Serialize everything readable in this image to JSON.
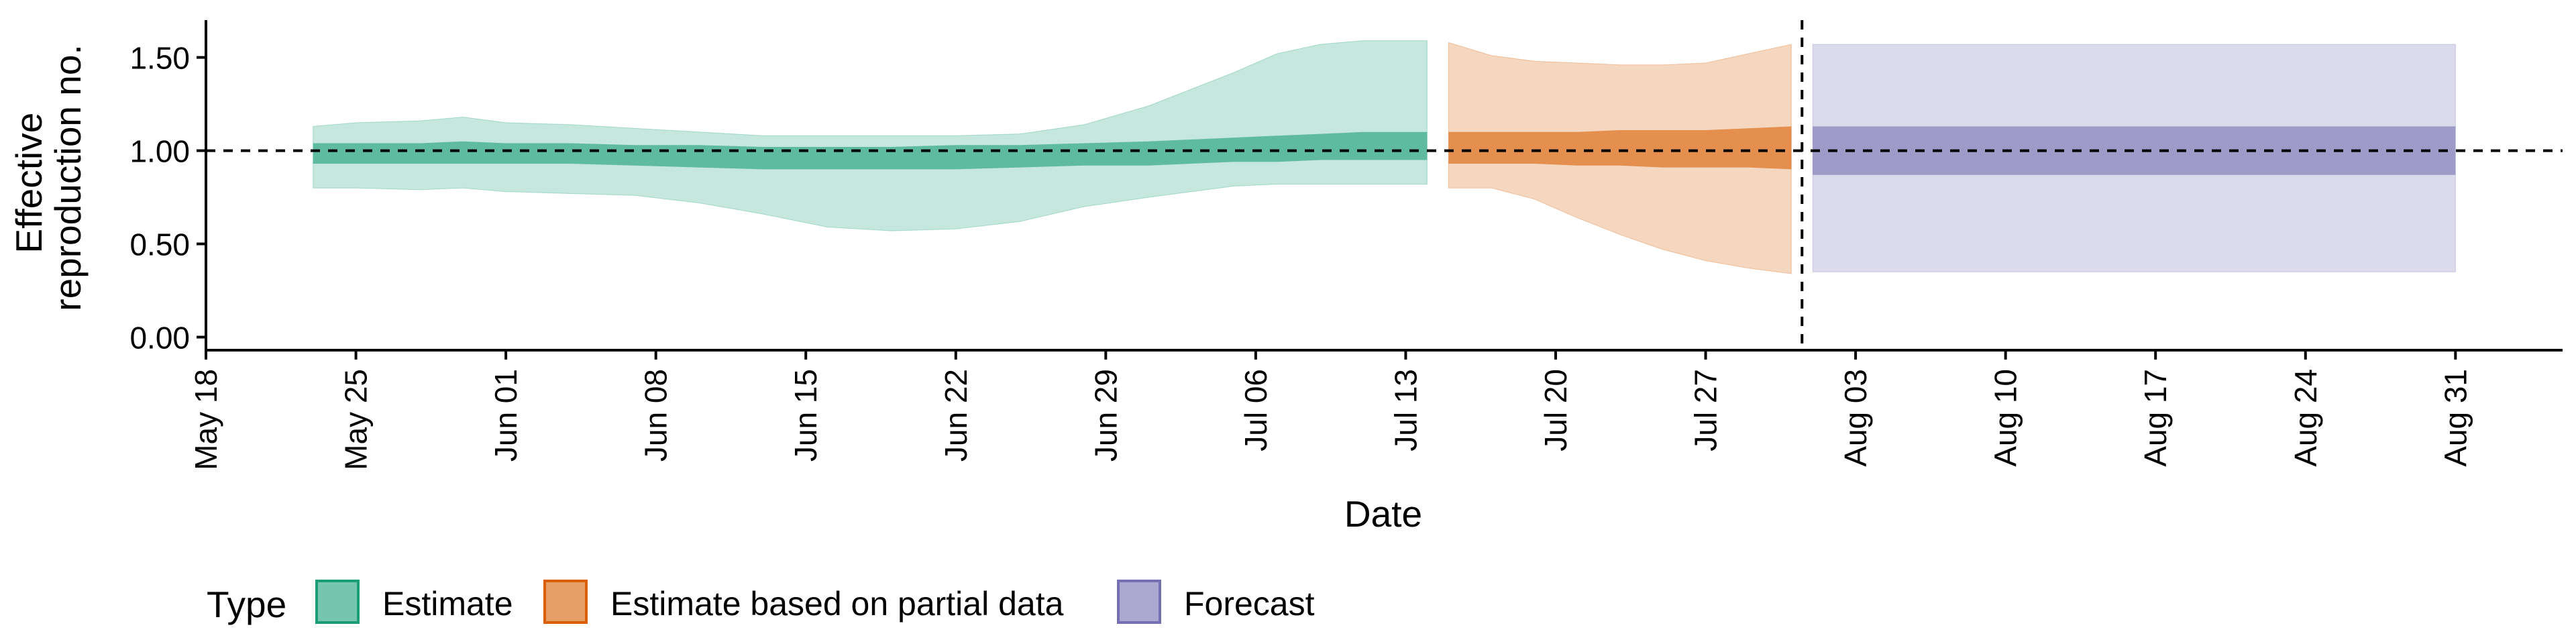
{
  "chart_data": {
    "type": "area",
    "title": "",
    "xlabel": "Date",
    "ylabel_lines": [
      "Effective",
      "reproduction no."
    ],
    "xlim": [
      "2020-05-18",
      "2020-09-05"
    ],
    "ylim": [
      -0.07,
      1.7
    ],
    "y_ticks": [
      0,
      0.5,
      1,
      1.5
    ],
    "y_tick_labels": [
      "0.00",
      "0.50",
      "1.00",
      "1.50"
    ],
    "x_ticks": [
      "2020-05-18",
      "2020-05-25",
      "2020-06-01",
      "2020-06-08",
      "2020-06-15",
      "2020-06-22",
      "2020-06-29",
      "2020-07-06",
      "2020-07-13",
      "2020-07-20",
      "2020-07-27",
      "2020-08-03",
      "2020-08-10",
      "2020-08-17",
      "2020-08-24",
      "2020-08-31"
    ],
    "x_tick_labels": [
      "May 18",
      "May 25",
      "Jun 01",
      "Jun 08",
      "Jun 15",
      "Jun 22",
      "Jun 29",
      "Jul 06",
      "Jul 13",
      "Jul 20",
      "Jul 27",
      "Aug 03",
      "Aug 10",
      "Aug 17",
      "Aug 24",
      "Aug 31"
    ],
    "reference_line_y": 1.0,
    "forecast_date": "2020-07-31",
    "legend_title": "Type",
    "legend_position": "bottom-left",
    "series": [
      {
        "name": "Estimate",
        "color": "#1b9e77",
        "outer_alpha": 0.25,
        "inner_alpha": 0.6,
        "x": [
          "2020-05-23",
          "2020-05-25",
          "2020-05-28",
          "2020-05-30",
          "2020-06-01",
          "2020-06-04",
          "2020-06-07",
          "2020-06-10",
          "2020-06-13",
          "2020-06-16",
          "2020-06-19",
          "2020-06-22",
          "2020-06-25",
          "2020-06-28",
          "2020-07-01",
          "2020-07-03",
          "2020-07-05",
          "2020-07-07",
          "2020-07-09",
          "2020-07-11",
          "2020-07-13",
          "2020-07-14"
        ],
        "upper_outer": [
          1.13,
          1.15,
          1.16,
          1.18,
          1.15,
          1.14,
          1.12,
          1.1,
          1.08,
          1.08,
          1.08,
          1.08,
          1.09,
          1.14,
          1.24,
          1.33,
          1.42,
          1.52,
          1.57,
          1.59,
          1.59,
          1.59
        ],
        "lower_outer": [
          0.8,
          0.8,
          0.79,
          0.8,
          0.78,
          0.77,
          0.76,
          0.72,
          0.66,
          0.59,
          0.57,
          0.58,
          0.62,
          0.7,
          0.75,
          0.78,
          0.81,
          0.82,
          0.82,
          0.82,
          0.82,
          0.82
        ],
        "upper_inner": [
          1.04,
          1.04,
          1.04,
          1.05,
          1.04,
          1.04,
          1.03,
          1.03,
          1.02,
          1.02,
          1.02,
          1.03,
          1.03,
          1.04,
          1.05,
          1.06,
          1.07,
          1.08,
          1.09,
          1.1,
          1.1,
          1.1
        ],
        "lower_inner": [
          0.93,
          0.93,
          0.93,
          0.93,
          0.93,
          0.93,
          0.92,
          0.91,
          0.9,
          0.9,
          0.9,
          0.9,
          0.91,
          0.92,
          0.92,
          0.93,
          0.94,
          0.94,
          0.95,
          0.95,
          0.95,
          0.95
        ]
      },
      {
        "name": "Estimate based on partial data",
        "color": "#d95f02",
        "outer_alpha": 0.25,
        "inner_alpha": 0.6,
        "x": [
          "2020-07-15",
          "2020-07-17",
          "2020-07-19",
          "2020-07-21",
          "2020-07-23",
          "2020-07-25",
          "2020-07-27",
          "2020-07-29",
          "2020-07-31"
        ],
        "upper_outer": [
          1.58,
          1.51,
          1.48,
          1.47,
          1.46,
          1.46,
          1.47,
          1.52,
          1.57
        ],
        "lower_outer": [
          0.8,
          0.8,
          0.74,
          0.64,
          0.55,
          0.47,
          0.41,
          0.37,
          0.34
        ],
        "upper_inner": [
          1.1,
          1.1,
          1.1,
          1.1,
          1.11,
          1.11,
          1.11,
          1.12,
          1.13
        ],
        "lower_inner": [
          0.93,
          0.93,
          0.93,
          0.92,
          0.92,
          0.91,
          0.91,
          0.91,
          0.9
        ]
      },
      {
        "name": "Forecast",
        "color": "#7570b3",
        "outer_alpha": 0.25,
        "inner_alpha": 0.6,
        "x": [
          "2020-08-01",
          "2020-08-31"
        ],
        "upper_outer": [
          1.57,
          1.57
        ],
        "lower_outer": [
          0.35,
          0.35
        ],
        "upper_inner": [
          1.13,
          1.13
        ],
        "lower_inner": [
          0.87,
          0.87
        ]
      }
    ]
  }
}
